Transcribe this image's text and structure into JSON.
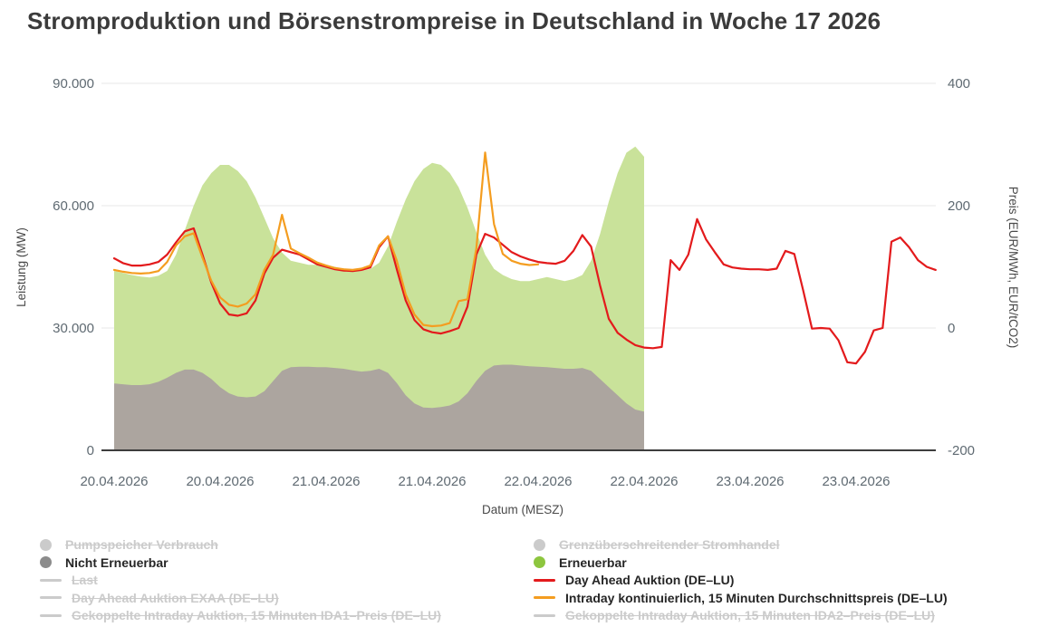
{
  "title": "Stromproduktion und Börsenstrompreise in Deutschland in Woche 17 2026",
  "axes": {
    "y_left": {
      "title": "Leistung (MW)",
      "ticks": [
        "90.000",
        "60.000",
        "30.000",
        "0"
      ]
    },
    "y_right": {
      "title": "Preis (EUR/MWh, EUR/tCO2)",
      "ticks": [
        "400",
        "200",
        "0",
        "-200"
      ]
    },
    "x": {
      "title": "Datum (MESZ)",
      "tick_labels": [
        "20.04.2026",
        "20.04.2026",
        "21.04.2026",
        "21.04.2026",
        "22.04.2026",
        "22.04.2026",
        "23.04.2026",
        "23.04.2026"
      ]
    }
  },
  "chart_data": {
    "type": "area+line",
    "title": "Stromproduktion und Börsenstrompreise in Deutschland in Woche 17 2026",
    "x_start": "20.04.2026 00:00 MESZ",
    "x_interval_hours": 1,
    "x_axis_end_hours": 93,
    "xlabel": "Datum (MESZ)",
    "ylabel_left": "Leistung (MW)",
    "ylabel_right": "Preis (EUR/MWh, EUR/tCO2)",
    "y_left_range": [
      0,
      90000
    ],
    "y_right_range": [
      -200,
      400
    ],
    "grid": true,
    "legend_position": "bottom",
    "series": [
      {
        "name": "Erneuerbar",
        "data_name": "renewable-area",
        "type": "area",
        "axis": "left",
        "color": "#c9e29a",
        "values": [
          44000,
          43500,
          43000,
          42600,
          42400,
          42800,
          44000,
          48000,
          54000,
          60000,
          65000,
          68000,
          70000,
          70000,
          68500,
          66000,
          62000,
          57000,
          52000,
          48500,
          46500,
          46000,
          45500,
          45500,
          45500,
          45000,
          44500,
          44000,
          44000,
          44500,
          46000,
          50000,
          56000,
          61500,
          66000,
          69000,
          70500,
          70000,
          68000,
          64500,
          59500,
          53500,
          48000,
          44500,
          43000,
          42000,
          41500,
          41500,
          42000,
          42500,
          42000,
          41500,
          42000,
          43000,
          46500,
          53000,
          61000,
          68000,
          73000,
          74500,
          72000
        ]
      },
      {
        "name": "Nicht Erneuerbar",
        "data_name": "nonrenewable-area",
        "type": "area",
        "axis": "left",
        "color": "#aca59f",
        "values": [
          16400,
          16200,
          16000,
          16000,
          16200,
          16800,
          17800,
          19000,
          19800,
          19800,
          19000,
          17500,
          15500,
          14000,
          13200,
          13000,
          13200,
          14500,
          17000,
          19500,
          20400,
          20500,
          20500,
          20400,
          20400,
          20200,
          20000,
          19600,
          19300,
          19500,
          20000,
          19000,
          16500,
          13500,
          11500,
          10500,
          10400,
          10600,
          11000,
          12000,
          14000,
          17000,
          19500,
          20800,
          21000,
          21000,
          20800,
          20600,
          20500,
          20400,
          20200,
          20000,
          20000,
          20200,
          19500,
          17500,
          15500,
          13500,
          11500,
          10000,
          9500
        ]
      },
      {
        "name": "Day Ahead Auktion (DE–LU)",
        "data_name": "day-ahead-line",
        "type": "line",
        "axis": "right",
        "color": "#e31a1c",
        "values": [
          114,
          106,
          102,
          102,
          104,
          108,
          120,
          140,
          158,
          163,
          120,
          74,
          40,
          22,
          20,
          24,
          45,
          89,
          115,
          128,
          124,
          120,
          112,
          104,
          100,
          96,
          94,
          93,
          95,
          99,
          132,
          150,
          96,
          45,
          13,
          -2,
          -7,
          -9,
          -5,
          0,
          35,
          120,
          154,
          148,
          136,
          124,
          117,
          112,
          108,
          106,
          105,
          110,
          126,
          152,
          133,
          70,
          15,
          -8,
          -19,
          -28,
          -32,
          -33,
          -31,
          111,
          95,
          120,
          178,
          145,
          124,
          104,
          99,
          97,
          96,
          96,
          95,
          97,
          126,
          121,
          62,
          -1,
          0,
          -1,
          -20,
          -56,
          -58,
          -39,
          -4,
          0,
          141,
          148,
          132,
          111,
          100,
          95
        ]
      },
      {
        "name": "Intraday kontinuierlich, 15 Minuten Durchschnittspreis (DE–LU)",
        "data_name": "intraday-line",
        "type": "line",
        "axis": "right",
        "color": "#f49d20",
        "values": [
          95,
          92,
          90,
          89,
          90,
          93,
          108,
          135,
          150,
          155,
          115,
          77,
          50,
          38,
          35,
          40,
          55,
          95,
          120,
          185,
          130,
          122,
          115,
          107,
          102,
          98,
          96,
          95,
          97,
          102,
          135,
          150,
          110,
          55,
          22,
          5,
          3,
          4,
          8,
          44,
          47,
          130,
          287,
          170,
          121,
          110,
          105,
          103,
          104
        ]
      }
    ]
  },
  "legend": {
    "left": [
      {
        "label": "Pumpspeicher Verbrauch",
        "marker": "circle",
        "color": "#cbcbcb",
        "active": false
      },
      {
        "label": "Nicht Erneuerbar",
        "marker": "circle",
        "color": "#8c8c8c",
        "active": true
      },
      {
        "label": "Last",
        "marker": "line",
        "color": "#cbcbcb",
        "active": false
      },
      {
        "label": "Day Ahead Auktion EXAA (DE–LU)",
        "marker": "line",
        "color": "#cbcbcb",
        "active": false
      },
      {
        "label": "Gekoppelte Intraday Auktion, 15 Minuten IDA1–Preis (DE–LU)",
        "marker": "line",
        "color": "#cbcbcb",
        "active": false
      }
    ],
    "right": [
      {
        "label": "Grenzüberschreitender Stromhandel",
        "marker": "circle",
        "color": "#cbcbcb",
        "active": false
      },
      {
        "label": "Erneuerbar",
        "marker": "circle",
        "color": "#8dc63f",
        "active": true
      },
      {
        "label": "Day Ahead Auktion (DE–LU)",
        "marker": "line",
        "color": "#e31a1c",
        "active": true
      },
      {
        "label": "Intraday kontinuierlich, 15 Minuten Durchschnittspreis (DE–LU)",
        "marker": "line",
        "color": "#f49d20",
        "active": true
      },
      {
        "label": "Gekoppelte Intraday Auktion, 15 Minuten IDA2–Preis (DE–LU)",
        "marker": "line",
        "color": "#cbcbcb",
        "active": false
      }
    ]
  }
}
